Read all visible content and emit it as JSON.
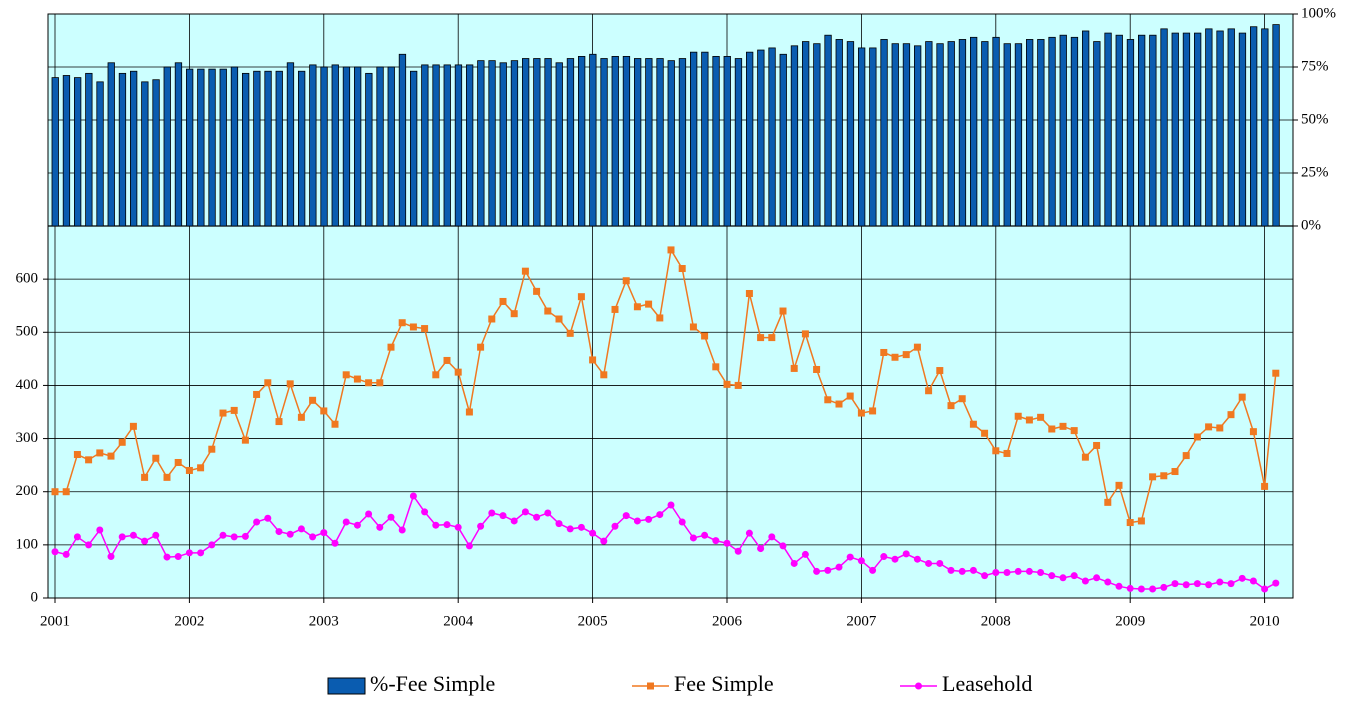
{
  "chart_data": {
    "type": "combo",
    "categories": [
      "2001",
      null,
      null,
      null,
      null,
      null,
      null,
      null,
      null,
      null,
      null,
      null,
      "2002",
      null,
      null,
      null,
      null,
      null,
      null,
      null,
      null,
      null,
      null,
      null,
      "2003",
      null,
      null,
      null,
      null,
      null,
      null,
      null,
      null,
      null,
      null,
      null,
      "2004",
      null,
      null,
      null,
      null,
      null,
      null,
      null,
      null,
      null,
      null,
      null,
      "2005",
      null,
      null,
      null,
      null,
      null,
      null,
      null,
      null,
      null,
      null,
      null,
      "2006",
      null,
      null,
      null,
      null,
      null,
      null,
      null,
      null,
      null,
      null,
      null,
      "2007",
      null,
      null,
      null,
      null,
      null,
      null,
      null,
      null,
      null,
      null,
      null,
      "2008",
      null,
      null,
      null,
      null,
      null,
      null,
      null,
      null,
      null,
      null,
      null,
      "2009",
      null,
      null,
      null,
      null,
      null,
      null,
      null,
      null,
      null,
      null,
      null,
      "2010",
      null
    ],
    "ylim": [
      0,
      700
    ],
    "yticks": [
      0,
      100,
      200,
      300,
      400,
      500,
      600
    ],
    "y2lim": [
      0,
      100
    ],
    "y2ticks": [
      {
        "value": 0,
        "label": "0%"
      },
      {
        "value": 25,
        "label": "25%"
      },
      {
        "value": 50,
        "label": "50%"
      },
      {
        "value": 75,
        "label": "75%"
      },
      {
        "value": 100,
        "label": "100%"
      }
    ],
    "grid": true,
    "legend": "bottom",
    "background": "#ccffff",
    "series": [
      {
        "name": "%-Fee Simple",
        "type": "bar",
        "axis": "y2",
        "color": "#0a5cb0",
        "values": [
          70,
          71,
          70,
          72,
          68,
          77,
          72,
          73,
          68,
          69,
          75,
          77,
          74,
          74,
          74,
          74,
          75,
          72,
          73,
          73,
          73,
          77,
          73,
          76,
          75,
          76,
          75,
          75,
          72,
          75,
          75,
          81,
          73,
          76,
          76,
          76,
          76,
          76,
          78,
          78,
          77,
          78,
          79,
          79,
          79,
          77,
          79,
          80,
          81,
          79,
          80,
          80,
          79,
          79,
          79,
          78,
          79,
          82,
          82,
          80,
          80,
          79,
          82,
          83,
          84,
          81,
          85,
          87,
          86,
          90,
          88,
          87,
          84,
          84,
          88,
          86,
          86,
          85,
          87,
          86,
          87,
          88,
          89,
          87,
          89,
          86,
          86,
          88,
          88,
          89,
          90,
          89,
          92,
          87,
          91,
          90,
          88,
          90,
          90,
          93,
          91,
          91,
          91,
          93,
          92,
          93,
          91,
          94,
          93,
          95
        ]
      },
      {
        "name": "Fee Simple",
        "type": "line",
        "marker": "square",
        "color": "#f07820",
        "values": [
          200,
          200,
          270,
          260,
          273,
          267,
          293,
          323,
          227,
          263,
          227,
          255,
          240,
          245,
          280,
          348,
          353,
          297,
          383,
          405,
          332,
          403,
          340,
          372,
          352,
          327,
          420,
          412,
          405,
          405,
          472,
          518,
          510,
          507,
          420,
          447,
          425,
          350,
          472,
          525,
          558,
          535,
          615,
          577,
          540,
          525,
          498,
          567,
          448,
          420,
          543,
          597,
          548,
          553,
          527,
          655,
          620,
          510,
          493,
          435,
          402,
          400,
          573,
          490,
          490,
          540,
          432,
          497,
          430,
          373,
          365,
          380,
          348,
          352,
          462,
          453,
          458,
          472,
          390,
          428,
          362,
          375,
          327,
          310,
          277,
          272,
          342,
          335,
          340,
          318,
          323,
          315,
          265,
          287,
          180,
          212,
          142,
          145,
          228,
          230,
          238,
          268,
          303,
          322,
          320,
          345,
          378,
          313,
          210,
          423
        ]
      },
      {
        "name": "Leasehold",
        "type": "line",
        "marker": "circle",
        "color": "#ff00ff",
        "values": [
          87,
          82,
          115,
          100,
          128,
          78,
          115,
          118,
          107,
          118,
          77,
          78,
          85,
          85,
          100,
          118,
          115,
          116,
          143,
          150,
          125,
          120,
          130,
          115,
          123,
          103,
          143,
          137,
          158,
          133,
          152,
          128,
          192,
          162,
          137,
          138,
          133,
          98,
          135,
          160,
          155,
          145,
          162,
          152,
          160,
          140,
          130,
          133,
          122,
          107,
          135,
          155,
          145,
          148,
          157,
          175,
          143,
          113,
          118,
          108,
          103,
          88,
          122,
          93,
          115,
          98,
          65,
          82,
          50,
          52,
          58,
          77,
          70,
          52,
          78,
          73,
          83,
          73,
          65,
          65,
          52,
          50,
          52,
          42,
          48,
          48,
          50,
          50,
          48,
          42,
          38,
          42,
          32,
          38,
          30,
          22,
          18,
          17,
          17,
          20,
          27,
          25,
          27,
          25,
          30,
          27,
          37,
          32,
          17,
          28
        ]
      }
    ]
  }
}
